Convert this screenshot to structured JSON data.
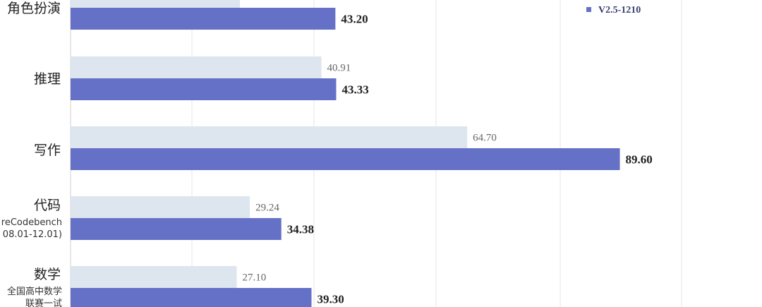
{
  "chart_data": {
    "type": "bar",
    "orientation": "horizontal",
    "categories": [
      {
        "label": "角色扮演",
        "sub": []
      },
      {
        "label": "推理",
        "sub": []
      },
      {
        "label": "写作",
        "sub": []
      },
      {
        "label": "代码",
        "sub": [
          "reCodebench",
          "08.01-12.01)"
        ]
      },
      {
        "label": "数学",
        "sub": [
          "全国高中数学",
          "联赛一试"
        ]
      }
    ],
    "series": [
      {
        "name": "",
        "color": "#dde5ee",
        "values": [
          null,
          40.91,
          64.7,
          29.24,
          27.1
        ],
        "labels": [
          "",
          "40.91",
          "64.70",
          "29.24",
          "27.10"
        ]
      },
      {
        "name": "V2.5-1210",
        "color": "#6471c6",
        "values": [
          43.2,
          43.33,
          89.6,
          34.38,
          39.3
        ],
        "labels": [
          "43.20",
          "43.33",
          "89.60",
          "34.38",
          "39.30"
        ]
      }
    ],
    "grid": "vertical",
    "legend_position": "top-right"
  }
}
